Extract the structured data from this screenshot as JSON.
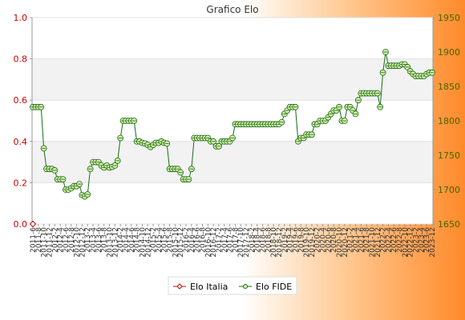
{
  "chart_data": {
    "type": "line",
    "title": "Grafico Elo",
    "xlabel": "",
    "ylabel": "",
    "y_left": {
      "ylim": [
        0.0,
        1.0
      ],
      "ticks": [
        0.0,
        0.2,
        0.4,
        0.6,
        0.8,
        1.0
      ],
      "tick_labels": [
        "0.0",
        "0.2",
        "0.4",
        "0.6",
        "0.8",
        "1.0"
      ],
      "color": "#cc0000"
    },
    "y_right": {
      "ylim": [
        1650,
        1950
      ],
      "ticks": [
        1650,
        1700,
        1750,
        1800,
        1850,
        1900,
        1950
      ],
      "tick_labels": [
        "1650",
        "1700",
        "1750",
        "1800",
        "1850",
        "1900",
        "1950"
      ],
      "color": "#446600"
    },
    "grid": true,
    "legend_position": "bottom",
    "x_first_label": "2011-6",
    "x_last_label": "2023-12",
    "series": [
      {
        "name": "Elo Italia",
        "axis": "left",
        "color": "#cc0000",
        "values": [
          0.0
        ]
      },
      {
        "name": "Elo FIDE",
        "axis": "right",
        "color": "#1a6b1a",
        "values": [
          1820,
          1820,
          1820,
          1820,
          1760,
          1730,
          1730,
          1730,
          1728,
          1715,
          1715,
          1715,
          1700,
          1700,
          1702,
          1705,
          1705,
          1708,
          1692,
          1690,
          1693,
          1730,
          1740,
          1740,
          1740,
          1735,
          1732,
          1735,
          1732,
          1733,
          1735,
          1742,
          1775,
          1800,
          1800,
          1800,
          1800,
          1800,
          1770,
          1770,
          1768,
          1767,
          1765,
          1762,
          1765,
          1768,
          1768,
          1770,
          1768,
          1767,
          1730,
          1730,
          1730,
          1730,
          1725,
          1715,
          1715,
          1715,
          1730,
          1775,
          1775,
          1775,
          1775,
          1775,
          1775,
          1770,
          1770,
          1763,
          1763,
          1770,
          1770,
          1770,
          1770,
          1775,
          1795,
          1795,
          1795,
          1795,
          1795,
          1795,
          1795,
          1795,
          1795,
          1795,
          1795,
          1795,
          1795,
          1795,
          1795,
          1795,
          1795,
          1798,
          1810,
          1815,
          1820,
          1820,
          1820,
          1770,
          1775,
          1775,
          1780,
          1780,
          1780,
          1795,
          1795,
          1800,
          1800,
          1800,
          1805,
          1810,
          1815,
          1815,
          1820,
          1800,
          1800,
          1820,
          1820,
          1815,
          1810,
          1830,
          1840,
          1840,
          1840,
          1840,
          1840,
          1840,
          1840,
          1820,
          1870,
          1900,
          1880,
          1880,
          1880,
          1880,
          1880,
          1882,
          1882,
          1878,
          1872,
          1868,
          1865,
          1865,
          1865,
          1865,
          1868,
          1870,
          1870
        ]
      }
    ]
  }
}
